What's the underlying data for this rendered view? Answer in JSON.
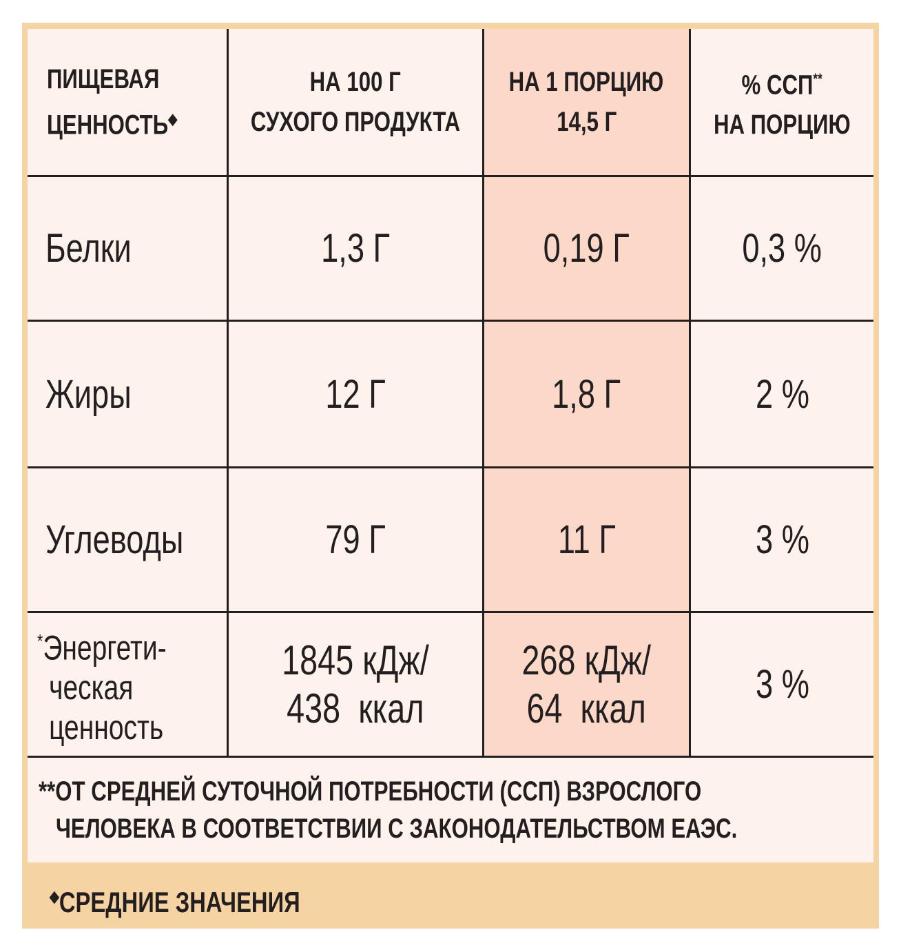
{
  "table": {
    "header": [
      {
        "lines": [
          "ПИЩЕВАЯ",
          "ЦЕННОСТЬ"
        ],
        "mark": "◆"
      },
      {
        "lines": [
          "НА 100 Г",
          "СУХОГО ПРОДУКТА"
        ]
      },
      {
        "lines": [
          "НА 1 ПОРЦИЮ",
          "14,5 Г"
        ]
      },
      {
        "lines": [
          "% ССП",
          "НА ПОРЦИЮ"
        ],
        "mark": "**"
      }
    ],
    "rows": [
      [
        "Белки",
        "1,3 Г",
        "0,19 Г",
        "0,3 %"
      ],
      [
        "Жиры",
        "12 Г",
        "1,8 Г",
        "2 %"
      ],
      [
        "Углеводы",
        "79 Г",
        "11 Г",
        "3 %"
      ]
    ],
    "energy": {
      "label_mark": "*",
      "label_lines": [
        "Энергети-",
        "ческая",
        "ценность"
      ],
      "per_100g": [
        "1845 кДж/",
        "438  ккал"
      ],
      "per_portion": [
        "268 кДж/",
        "64  ккал"
      ],
      "percent": "3 %"
    }
  },
  "footnote": {
    "mark": "**",
    "lines": [
      "ОТ СРЕДНЕЙ СУТОЧНОЙ ПОТРЕБНОСТИ (ССП) ВЗРОСЛОГО",
      "ЧЕЛОВЕКА В СООТВЕТСТВИИ С ЗАКОНОДАТЕЛЬСТВОМ ЕАЭС."
    ]
  },
  "note": {
    "mark": "◆",
    "text": "СРЕДНИЕ ЗНАЧЕНИЯ"
  }
}
